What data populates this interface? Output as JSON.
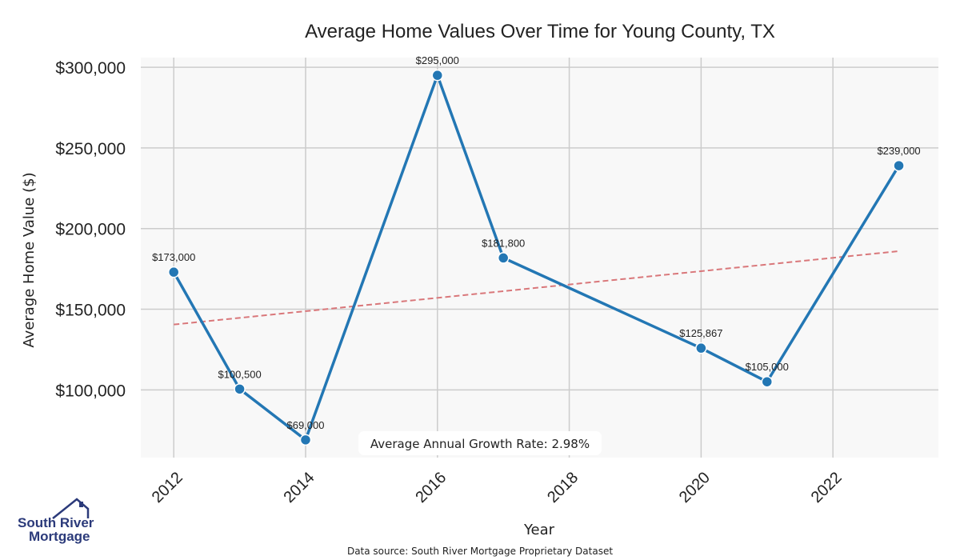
{
  "chart_data": {
    "type": "line",
    "title": "Average Home Values Over Time for Young County, TX",
    "xlabel": "Year",
    "ylabel": "Average Home Value ($)",
    "xlim": [
      2011.5,
      2023.6
    ],
    "ylim": [
      58000,
      306000
    ],
    "x_ticks": [
      2012,
      2014,
      2016,
      2018,
      2020,
      2022
    ],
    "y_ticks": [
      100000,
      150000,
      200000,
      250000,
      300000
    ],
    "y_tick_labels": [
      "$100,000",
      "$150,000",
      "$200,000",
      "$250,000",
      "$300,000"
    ],
    "grid": true,
    "series": [
      {
        "x": [
          2012,
          2013,
          2014,
          2016,
          2017,
          2020,
          2021,
          2023
        ],
        "values": [
          173000,
          100500,
          69000,
          295000,
          181800,
          125867,
          105000,
          239000
        ],
        "labels": [
          "$173,000",
          "$100,500",
          "$69,000",
          "$295,000",
          "$181,800",
          "$125,867",
          "$105,000",
          "$239,000"
        ],
        "color": "#2377b4"
      }
    ],
    "trendline": {
      "x": [
        2012,
        2023
      ],
      "y": [
        140500,
        186000
      ],
      "color": "#d9777a",
      "style": "dashed"
    },
    "annotation": "Average Annual Growth Rate: 2.98%",
    "source": "Data source: South River Mortgage Proprietary Dataset"
  },
  "logo": {
    "line1": "South River",
    "line2": "Mortgage",
    "color": "#2b3a7a"
  },
  "colors": {
    "plot_bg": "#f8f8f8",
    "grid": "#cccccc"
  }
}
